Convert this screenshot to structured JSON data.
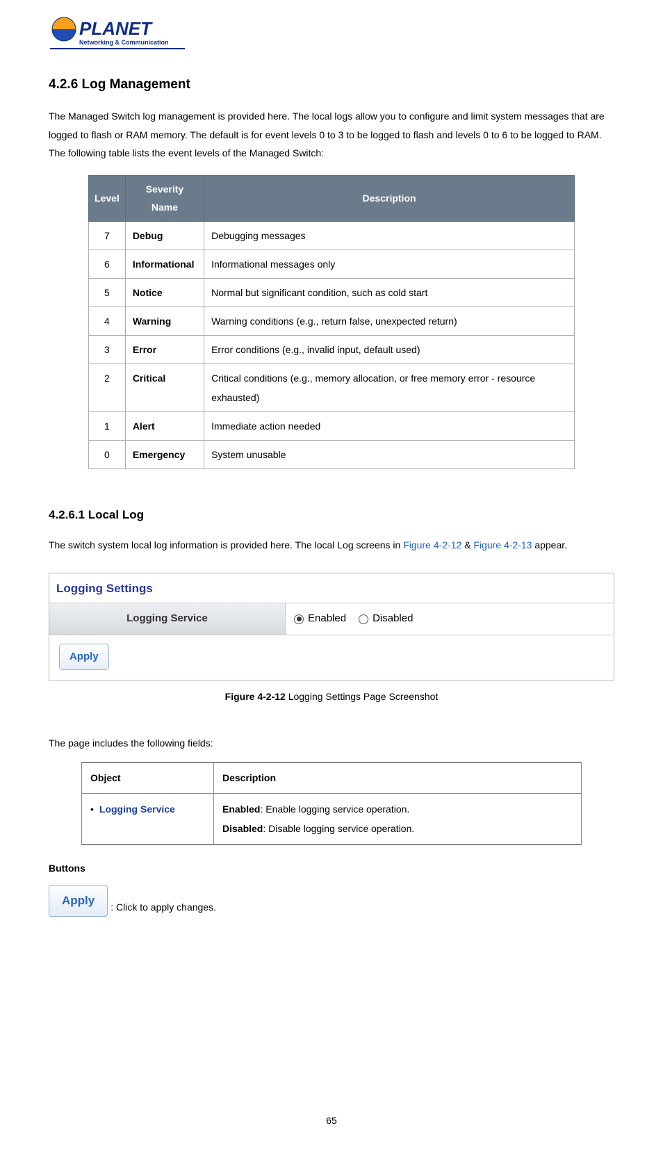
{
  "logo": {
    "brand": "PLANET",
    "tagline": "Networking & Communication",
    "text_color": "#122d86",
    "globe_colors": [
      "#f6a21b",
      "#1f4db5"
    ]
  },
  "section": {
    "number_title": "4.2.6 Log Management",
    "intro": "The Managed Switch log management is provided here. The local logs allow you to configure and limit system messages that are logged to flash or RAM memory. The default is for event levels 0 to 3 to be logged to flash and levels 0 to 6 to be logged to RAM. The following table lists the event levels of the Managed Switch:"
  },
  "severity_table": {
    "header_bg": "#6a7b8c",
    "headers": {
      "level": "Level",
      "severity": "Severity Name",
      "description": "Description"
    },
    "rows": [
      {
        "level": "7",
        "severity": "Debug",
        "description": "Debugging messages"
      },
      {
        "level": "6",
        "severity": "Informational",
        "description": "Informational messages only"
      },
      {
        "level": "5",
        "severity": "Notice",
        "description": "Normal but significant condition, such as cold start"
      },
      {
        "level": "4",
        "severity": "Warning",
        "description": "Warning conditions (e.g., return false, unexpected return)"
      },
      {
        "level": "3",
        "severity": "Error",
        "description": "Error conditions (e.g., invalid input, default used)"
      },
      {
        "level": "2",
        "severity": "Critical",
        "description": "Critical conditions (e.g., memory allocation, or free memory error - resource exhausted)"
      },
      {
        "level": "1",
        "severity": "Alert",
        "description": "Immediate action needed"
      },
      {
        "level": "0",
        "severity": "Emergency",
        "description": "System unusable"
      }
    ]
  },
  "subsection": {
    "number_title": "4.2.6.1 Local Log",
    "intro_before": "The switch system local log information is provided here. The local Log screens in ",
    "figref1": "Figure 4-2-12",
    "amp": " & ",
    "figref2": "Figure 4-2-13",
    "intro_after": " appear."
  },
  "panel": {
    "title": "Logging Settings",
    "row_label": "Logging Service",
    "opt_enabled": "Enabled",
    "opt_disabled": "Disabled",
    "selected": "enabled",
    "apply_label": "Apply"
  },
  "fig_caption": {
    "bold": "Figure 4-2-12",
    "rest": " Logging Settings Page Screenshot"
  },
  "fields_intro": "The page includes the following fields:",
  "fields_table": {
    "headers": {
      "object": "Object",
      "description": "Description"
    },
    "row": {
      "object": "Logging Service",
      "desc_enabled_b": "Enabled",
      "desc_enabled_rest": ": Enable logging service operation.",
      "desc_disabled_b": "Disabled",
      "desc_disabled_rest": ": Disable logging service operation."
    }
  },
  "buttons": {
    "heading": "Buttons",
    "apply_label": "Apply",
    "apply_desc": ": Click to apply changes."
  },
  "page_number": "65"
}
